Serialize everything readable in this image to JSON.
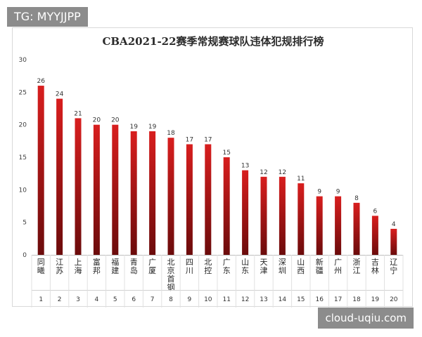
{
  "watermarks": {
    "top_left": "TG: MYYJJPP",
    "bottom_right": "cloud-uqiu.com"
  },
  "chart_data": {
    "type": "bar",
    "title": "CBA2021-22赛季常规赛球队违体犯规排行榜",
    "xlabel": "",
    "ylabel": "",
    "ylim": [
      0,
      30
    ],
    "yticks": [
      0,
      5,
      10,
      15,
      20,
      25,
      30
    ],
    "grid": false,
    "legend": "none",
    "bar_color_top": "#d81e1e",
    "bar_color_bottom": "#6b0b0b",
    "categories": [
      "同曦",
      "江苏",
      "上海",
      "富邦",
      "福建",
      "青岛",
      "广厦",
      "北京首钢",
      "四川",
      "北控",
      "广东",
      "山东",
      "天津",
      "深圳",
      "山西",
      "新疆",
      "广州",
      "浙江",
      "吉林",
      "辽宁"
    ],
    "ranks": [
      "1",
      "2",
      "3",
      "4",
      "5",
      "6",
      "7",
      "8",
      "9",
      "10",
      "11",
      "12",
      "13",
      "14",
      "15",
      "16",
      "17",
      "18",
      "19",
      "20"
    ],
    "values": [
      26,
      24,
      21,
      20,
      20,
      19,
      19,
      18,
      17,
      17,
      15,
      13,
      12,
      12,
      11,
      9,
      9,
      8,
      6,
      4
    ]
  }
}
